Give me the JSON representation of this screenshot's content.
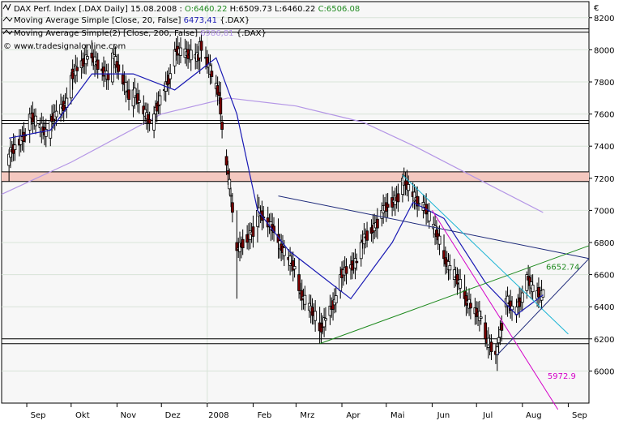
{
  "chart_data": {
    "type": "candlestick",
    "currency_symbol": "€",
    "legend": {
      "main": {
        "prefix": "DAX Perf. Index [.DAX  Daily] 15.08.2008 : ",
        "open": "O:6460.22",
        "high": "H:6509.73",
        "low": "L:6460.22",
        "close": "C:6506.08"
      },
      "ma20": {
        "label": "Moving Average Simple [Close, 20, False]",
        "value": "6473,41",
        "suffix": "{.DAX}"
      },
      "ma200": {
        "label": "Moving Average Simple(2) [Close, 200, False]",
        "value": "6986,81",
        "suffix": "{.DAX}"
      },
      "watermark": "© www.tradesignalonline.com"
    },
    "ylim": [
      5800,
      8300
    ],
    "yticks": [
      "8200",
      "8000",
      "7800",
      "7600",
      "7400",
      "7200",
      "7000",
      "6800",
      "6600",
      "6400",
      "6200",
      "6000"
    ],
    "xticks": [
      "Sep",
      "Okt",
      "Nov",
      "Dez",
      "2008",
      "Feb",
      "Mrz",
      "Apr",
      "Mai",
      "Jun",
      "Jul",
      "Aug",
      "Sep"
    ],
    "x_start": "2007-08-15",
    "x_end": "2008-09-15",
    "ohlc_sample": [
      {
        "date": "2007-08-20",
        "o": 7280,
        "h": 7380,
        "l": 7180,
        "c": 7350
      },
      {
        "date": "2007-09-03",
        "o": 7500,
        "h": 7640,
        "l": 7420,
        "c": 7600
      },
      {
        "date": "2007-09-17",
        "o": 7450,
        "h": 7600,
        "l": 7400,
        "c": 7560
      },
      {
        "date": "2007-10-01",
        "o": 7700,
        "h": 7860,
        "l": 7660,
        "c": 7840
      },
      {
        "date": "2007-10-15",
        "o": 7980,
        "h": 8060,
        "l": 7900,
        "c": 7950
      },
      {
        "date": "2007-10-29",
        "o": 7800,
        "h": 8010,
        "l": 7780,
        "c": 7980
      },
      {
        "date": "2007-11-12",
        "o": 7650,
        "h": 7800,
        "l": 7580,
        "c": 7750
      },
      {
        "date": "2007-11-26",
        "o": 7500,
        "h": 7650,
        "l": 7450,
        "c": 7600
      },
      {
        "date": "2007-12-10",
        "o": 7900,
        "h": 8050,
        "l": 7850,
        "c": 8000
      },
      {
        "date": "2007-12-27",
        "o": 7950,
        "h": 8080,
        "l": 7850,
        "c": 8050
      },
      {
        "date": "2008-01-10",
        "o": 7700,
        "h": 7800,
        "l": 7550,
        "c": 7600
      },
      {
        "date": "2008-01-21",
        "o": 6800,
        "h": 7000,
        "l": 6450,
        "c": 6750
      },
      {
        "date": "2008-02-04",
        "o": 6900,
        "h": 7100,
        "l": 6800,
        "c": 7000
      },
      {
        "date": "2008-02-18",
        "o": 6850,
        "h": 6950,
        "l": 6700,
        "c": 6800
      },
      {
        "date": "2008-03-03",
        "o": 6600,
        "h": 6700,
        "l": 6450,
        "c": 6500
      },
      {
        "date": "2008-03-17",
        "o": 6300,
        "h": 6400,
        "l": 6170,
        "c": 6250
      },
      {
        "date": "2008-03-31",
        "o": 6500,
        "h": 6650,
        "l": 6450,
        "c": 6600
      },
      {
        "date": "2008-04-14",
        "o": 6700,
        "h": 6850,
        "l": 6650,
        "c": 6800
      },
      {
        "date": "2008-04-28",
        "o": 6950,
        "h": 7050,
        "l": 6900,
        "c": 7000
      },
      {
        "date": "2008-05-12",
        "o": 7100,
        "h": 7230,
        "l": 7050,
        "c": 7200
      },
      {
        "date": "2008-05-26",
        "o": 7000,
        "h": 7100,
        "l": 6950,
        "c": 7050
      },
      {
        "date": "2008-06-09",
        "o": 6750,
        "h": 6850,
        "l": 6650,
        "c": 6700
      },
      {
        "date": "2008-06-23",
        "o": 6500,
        "h": 6600,
        "l": 6400,
        "c": 6450
      },
      {
        "date": "2008-07-07",
        "o": 6300,
        "h": 6350,
        "l": 6150,
        "c": 6200
      },
      {
        "date": "2008-07-15",
        "o": 6100,
        "h": 6200,
        "l": 6000,
        "c": 6150
      },
      {
        "date": "2008-07-21",
        "o": 6400,
        "h": 6500,
        "l": 6350,
        "c": 6450
      },
      {
        "date": "2008-07-28",
        "o": 6350,
        "h": 6450,
        "l": 6300,
        "c": 6400
      },
      {
        "date": "2008-08-04",
        "o": 6500,
        "h": 6620,
        "l": 6450,
        "c": 6600
      },
      {
        "date": "2008-08-11",
        "o": 6450,
        "h": 6550,
        "l": 6400,
        "c": 6500
      },
      {
        "date": "2008-08-15",
        "o": 6460.22,
        "h": 6509.73,
        "l": 6460.22,
        "c": 6506.08
      }
    ],
    "ma20_points": [
      {
        "date": "2007-08-20",
        "v": 7450
      },
      {
        "date": "2007-09-17",
        "v": 7500
      },
      {
        "date": "2007-10-15",
        "v": 7850
      },
      {
        "date": "2007-11-12",
        "v": 7850
      },
      {
        "date": "2007-12-10",
        "v": 7750
      },
      {
        "date": "2008-01-07",
        "v": 7950
      },
      {
        "date": "2008-01-21",
        "v": 7600
      },
      {
        "date": "2008-02-04",
        "v": 7000
      },
      {
        "date": "2008-02-25",
        "v": 6750
      },
      {
        "date": "2008-03-17",
        "v": 6600
      },
      {
        "date": "2008-04-07",
        "v": 6450
      },
      {
        "date": "2008-05-05",
        "v": 6800
      },
      {
        "date": "2008-05-19",
        "v": 7050
      },
      {
        "date": "2008-06-09",
        "v": 6950
      },
      {
        "date": "2008-07-07",
        "v": 6550
      },
      {
        "date": "2008-07-28",
        "v": 6350
      },
      {
        "date": "2008-08-15",
        "v": 6473.41
      }
    ],
    "ma200_points": [
      {
        "date": "2007-08-15",
        "v": 7100
      },
      {
        "date": "2007-10-01",
        "v": 7300
      },
      {
        "date": "2007-12-01",
        "v": 7600
      },
      {
        "date": "2008-01-15",
        "v": 7700
      },
      {
        "date": "2008-03-01",
        "v": 7650
      },
      {
        "date": "2008-04-15",
        "v": 7550
      },
      {
        "date": "2008-05-20",
        "v": 7400
      },
      {
        "date": "2008-07-01",
        "v": 7200
      },
      {
        "date": "2008-08-15",
        "v": 6986.81
      }
    ],
    "horizontal_lines": [
      8130,
      8110,
      7560,
      7540,
      7240,
      7180,
      6200,
      6170
    ],
    "highlight_zone": [
      7180,
      7240
    ],
    "trendlines": [
      {
        "name": "downtrend-upper",
        "color": "#1e2a7a",
        "from": {
          "date": "2008-02-18",
          "v": 7090
        },
        "to": {
          "date": "2008-09-15",
          "v": 6700
        }
      },
      {
        "name": "uptrend-green",
        "color": "#1e8a1e",
        "from": {
          "date": "2008-03-17",
          "v": 6170
        },
        "to": {
          "date": "2008-09-15",
          "v": 6780
        }
      },
      {
        "name": "channel-cyan",
        "color": "#1ab4d4",
        "from": {
          "date": "2008-05-12",
          "v": 7220
        },
        "to": {
          "date": "2008-09-01",
          "v": 6230
        }
      },
      {
        "name": "channel-magenta",
        "color": "#d400c8",
        "from": {
          "date": "2008-06-01",
          "v": 7000
        },
        "to": {
          "date": "2008-08-25",
          "v": 5760
        }
      },
      {
        "name": "triangle-lower",
        "color": "#1e2a7a",
        "from": {
          "date": "2008-07-15",
          "v": 6100
        },
        "to": {
          "date": "2008-09-15",
          "v": 6700
        }
      }
    ],
    "annotations": [
      {
        "text": "6652.74",
        "date": "2008-08-17",
        "v": 6650,
        "color": "#228b22"
      },
      {
        "text": "5972.9",
        "date": "2008-08-18",
        "v": 5972.9,
        "color": "#d400c8"
      }
    ],
    "vertical_markers": [
      "2008-01-01"
    ],
    "colors": {
      "up": "#ffffff",
      "down": "#7a0000",
      "wick": "#000000",
      "ma20": "#1a1ab4",
      "ma200": "#b496e6",
      "zone": "#f4c8c0",
      "grid": "#d8e4d8"
    },
    "grid": true
  }
}
